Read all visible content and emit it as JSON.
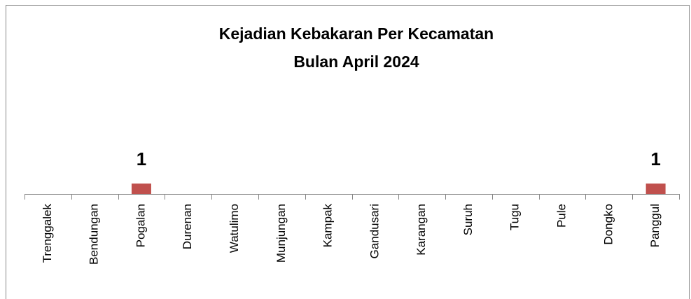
{
  "chart_data": {
    "type": "bar",
    "title": [
      "Kejadian Kebakaran Per Kecamatan",
      "Bulan April 2024"
    ],
    "categories": [
      "Trenggalek",
      "Bendungan",
      "Pogalan",
      "Durenan",
      "Watulimo",
      "Munjungan",
      "Kampak",
      "Gandusari",
      "Karangan",
      "Suruh",
      "Tugu",
      "Pule",
      "Dongko",
      "Panggul"
    ],
    "values": [
      0,
      0,
      1,
      0,
      0,
      0,
      0,
      0,
      0,
      0,
      0,
      0,
      0,
      1
    ],
    "color": "#c0504d",
    "ylim": [
      0,
      16
    ]
  }
}
